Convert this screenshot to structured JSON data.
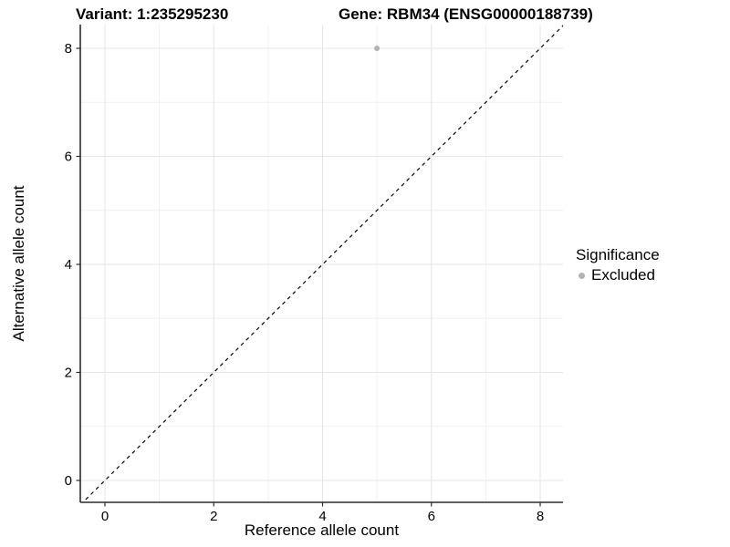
{
  "titles": {
    "left": "Variant: 1:235295230",
    "right": "Gene: RBM34 (ENSG00000188739)"
  },
  "chart_data": {
    "type": "scatter",
    "title": "Variant: 1:235295230    Gene: RBM34 (ENSG00000188739)",
    "xlabel": "Reference allele count",
    "ylabel": "Alternative allele count",
    "xlim": [
      -0.45,
      8.45
    ],
    "ylim": [
      -0.45,
      8.45
    ],
    "x_ticks": [
      0,
      2,
      4,
      6,
      8
    ],
    "y_ticks": [
      0,
      2,
      4,
      6,
      8
    ],
    "x_minor_gridlines": [
      1,
      3,
      5,
      7
    ],
    "y_minor_gridlines": [
      1,
      3,
      5,
      7
    ],
    "grid": "major and minor, light gray on white panel",
    "identity_line": {
      "slope": 1,
      "intercept": 0,
      "style": "dashed",
      "color": "#000000"
    },
    "series": [
      {
        "name": "Excluded",
        "color": "#b3b3b3",
        "points": [
          {
            "x": 5,
            "y": 8
          }
        ]
      }
    ],
    "legend": {
      "title": "Significance",
      "position": "right",
      "entries": [
        {
          "label": "Excluded",
          "color": "#b3b3b3",
          "marker": "circle"
        }
      ]
    }
  },
  "colors": {
    "background": "#ffffff",
    "grid_major": "#e6e6e6",
    "grid_minor": "#f0f0f0",
    "axis_line": "#2b2b2b",
    "tick_mark": "#2b2b2b",
    "tick_label": "#000000",
    "point": "#b3b3b3",
    "identity_line": "#000000"
  }
}
